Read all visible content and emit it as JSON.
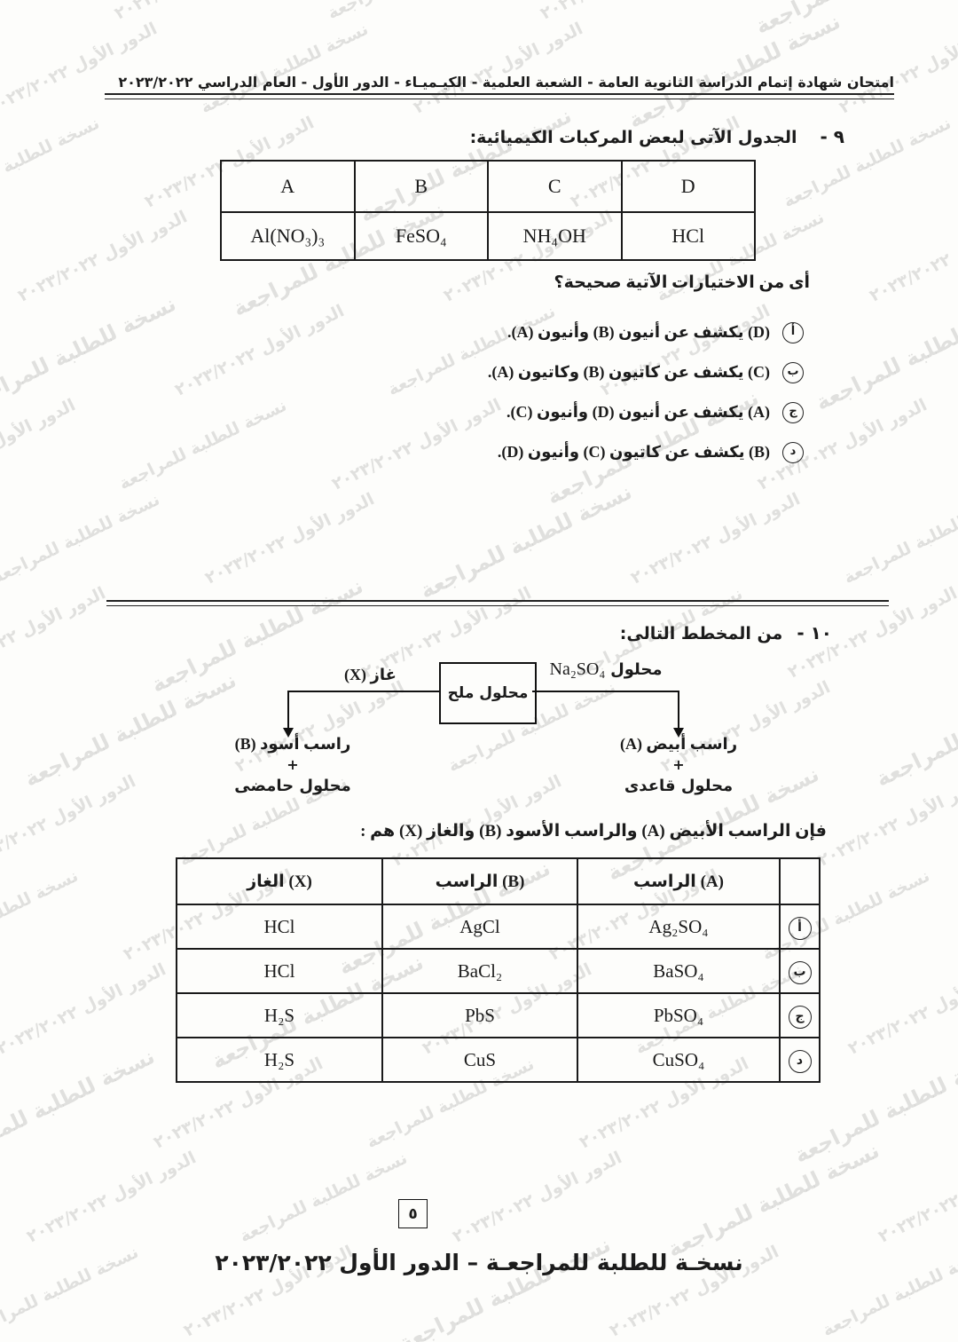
{
  "page": {
    "background": "#fdfdfb",
    "ink": "#1b1b1b"
  },
  "header": {
    "title": "امتحان شهادة إتمام الدراسة الثانوية العامة - الشعبة العلمية - الكيـميـاء - الدور الأول - العام الدراسي ٢٠٢٣/٢٠٢٢"
  },
  "q9": {
    "number": "٩ -",
    "prompt": "الجدول الآتى لبعض المركبات الكيميائية:",
    "compounds_table": {
      "headers": [
        "A",
        "B",
        "C",
        "D"
      ],
      "formulas": [
        "Al(NO₃)₃",
        "FeSO₄",
        "NH₄OH",
        "HCl"
      ]
    },
    "stem": "أى من الاختيارات الآتية صحيحة؟",
    "options": [
      {
        "letter": "أ",
        "text": "(D) يكشف عن أنيون (B) وأنيون (A)."
      },
      {
        "letter": "ب",
        "text": "(C) يكشف عن كاتيون (B) وكاتيون (A)."
      },
      {
        "letter": "ج",
        "text": "(A) يكشف عن أنيون (D) وأنيون (C)."
      },
      {
        "letter": "د",
        "text": "(B) يكشف عن كاتيون (C) وأنيون (D)."
      }
    ]
  },
  "q10": {
    "number": "١٠ -",
    "prompt": "من المخطط التالى:",
    "diagram": {
      "box_label": "محلول ملح",
      "left_branch_label": "غاز (X)",
      "right_branch_label_ar": "محلول",
      "right_branch_formula": "Na₂SO₄",
      "left_result_line1": "راسب أسود (B)",
      "left_result_plus": "+",
      "left_result_line2": "محلول حامضى",
      "right_result_line1": "راسب أبيض (A)",
      "right_result_plus": "+",
      "right_result_line2": "محلول قاعدى"
    },
    "stem": "فإن الراسب الأبيض (A) والراسب الأسود (B) والغاز (X) هم :",
    "results_table": {
      "headers_ltr": [
        "الغاز (X)",
        "الراسب (B)",
        "الراسب (A)"
      ],
      "rows": [
        {
          "letter": "أ",
          "gas_x": "HCl",
          "precip_b": "AgCl",
          "precip_a": "Ag₂SO₄"
        },
        {
          "letter": "ب",
          "gas_x": "HCl",
          "precip_b": "BaCl₂",
          "precip_a": "BaSO₄"
        },
        {
          "letter": "ج",
          "gas_x": "H₂S",
          "precip_b": "PbS",
          "precip_a": "PbSO₄"
        },
        {
          "letter": "د",
          "gas_x": "H₂S",
          "precip_b": "CuS",
          "precip_a": "CuSO₄"
        }
      ]
    }
  },
  "footer": {
    "page_number": "٥",
    "line": "نسخـة للطلبة للمراجعـة – الدور الأول ٢٠٢٣/٢٠٢٢"
  },
  "watermark": {
    "phrases": [
      "نسخة للطلبة للمراجعة",
      "الدور الأول ٢٠٢٣/٢٠٢٢"
    ]
  }
}
